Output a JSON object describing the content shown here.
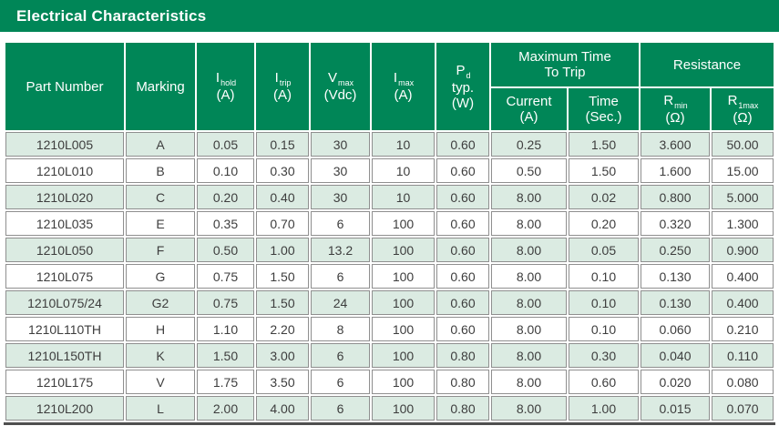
{
  "title": "Electrical Characteristics",
  "table": {
    "headers": {
      "part_number": "Part Number",
      "marking": "Marking",
      "i_hold": {
        "sym": "I",
        "sub": "hold",
        "unit": "(A)"
      },
      "i_trip": {
        "sym": "I",
        "sub": "trip",
        "unit": "(A)"
      },
      "v_max": {
        "sym": "V",
        "sub": "max",
        "unit": "(Vdc)"
      },
      "i_max": {
        "sym": "I",
        "sub": "max",
        "unit": "(A)"
      },
      "p_d": {
        "sym": "P",
        "sub": "d",
        "line2": "typ.",
        "unit": "(W)"
      },
      "max_time_to_trip": {
        "line1": "Maximum Time",
        "line2": "To Trip"
      },
      "current": {
        "line1": "Current",
        "unit": "(A)"
      },
      "time": {
        "line1": "Time",
        "unit": "(Sec.)"
      },
      "resistance": "Resistance",
      "r_min": {
        "sym": "R",
        "sub": "min",
        "unit": "(Ω)"
      },
      "r_1max": {
        "sym": "R",
        "sub": "1max",
        "unit": "(Ω)"
      }
    },
    "rows": [
      [
        "1210L005",
        "A",
        "0.05",
        "0.15",
        "30",
        "10",
        "0.60",
        "0.25",
        "1.50",
        "3.600",
        "50.00"
      ],
      [
        "1210L010",
        "B",
        "0.10",
        "0.30",
        "30",
        "10",
        "0.60",
        "0.50",
        "1.50",
        "1.600",
        "15.00"
      ],
      [
        "1210L020",
        "C",
        "0.20",
        "0.40",
        "30",
        "10",
        "0.60",
        "8.00",
        "0.02",
        "0.800",
        "5.000"
      ],
      [
        "1210L035",
        "E",
        "0.35",
        "0.70",
        "6",
        "100",
        "0.60",
        "8.00",
        "0.20",
        "0.320",
        "1.300"
      ],
      [
        "1210L050",
        "F",
        "0.50",
        "1.00",
        "13.2",
        "100",
        "0.60",
        "8.00",
        "0.05",
        "0.250",
        "0.900"
      ],
      [
        "1210L075",
        "G",
        "0.75",
        "1.50",
        "6",
        "100",
        "0.60",
        "8.00",
        "0.10",
        "0.130",
        "0.400"
      ],
      [
        "1210L075/24",
        "G2",
        "0.75",
        "1.50",
        "24",
        "100",
        "0.60",
        "8.00",
        "0.10",
        "0.130",
        "0.400"
      ],
      [
        "1210L110TH",
        "H",
        "1.10",
        "2.20",
        "8",
        "100",
        "0.60",
        "8.00",
        "0.10",
        "0.060",
        "0.210"
      ],
      [
        "1210L150TH",
        "K",
        "1.50",
        "3.00",
        "6",
        "100",
        "0.80",
        "8.00",
        "0.30",
        "0.040",
        "0.110"
      ],
      [
        "1210L175",
        "V",
        "1.75",
        "3.50",
        "6",
        "100",
        "0.80",
        "8.00",
        "0.60",
        "0.020",
        "0.080"
      ],
      [
        "1210L200",
        "L",
        "2.00",
        "4.00",
        "6",
        "100",
        "0.80",
        "8.00",
        "1.00",
        "0.015",
        "0.070"
      ]
    ],
    "colors": {
      "header_green": "#008657",
      "banded_row": "#dbebe2",
      "cell_border": "#8f8f8f",
      "bottom_rule": "#4f4f4f",
      "data_text": "#3d3d3d"
    }
  }
}
